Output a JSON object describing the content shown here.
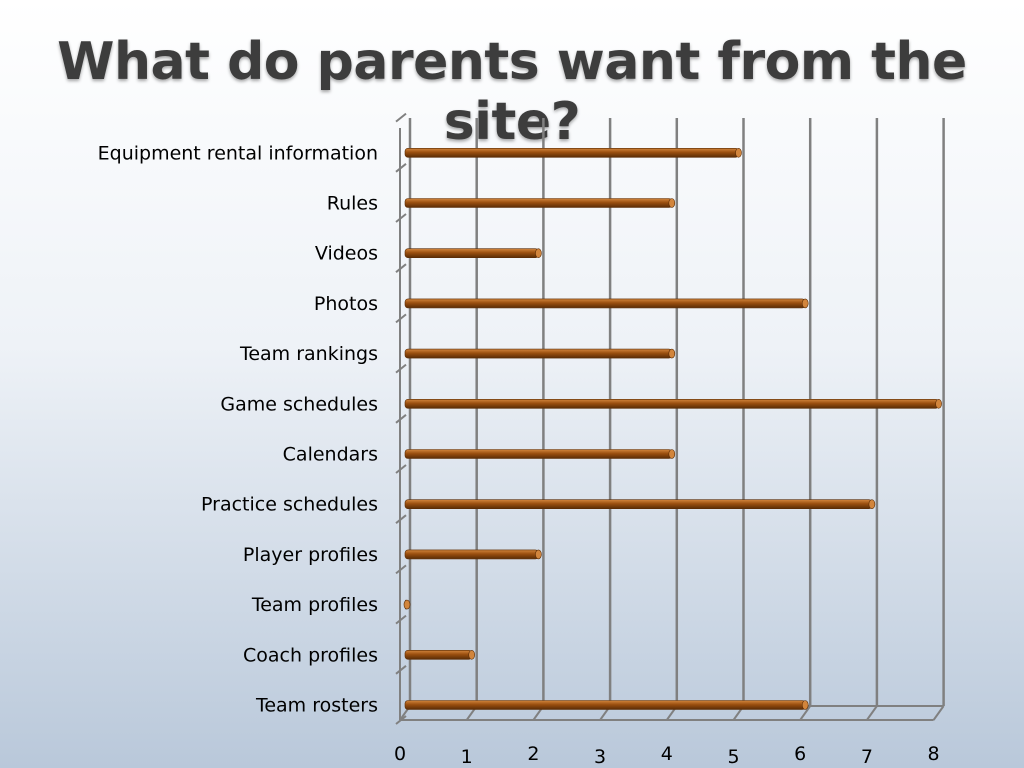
{
  "slide": {
    "title": "What do parents want from the site?"
  },
  "colors": {
    "bar": "#9a4f0f",
    "bar_light": "#d2853c",
    "bar_dark": "#5a2c06",
    "grid": "#808080",
    "text": "#000000"
  },
  "chart_data": {
    "type": "bar",
    "orientation": "horizontal",
    "categories": [
      "Team rosters",
      "Coach profiles",
      "Team profiles",
      "Player profiles",
      "Practice schedules",
      "Calendars",
      "Game schedules",
      "Team rankings",
      "Photos",
      "Videos",
      "Rules",
      "Equipment rental information"
    ],
    "values": [
      6,
      1,
      0,
      2,
      7,
      4,
      8,
      4,
      6,
      2,
      4,
      5
    ],
    "xlim": [
      0,
      8
    ],
    "xticks": [
      "0",
      "1",
      "2",
      "3",
      "4",
      "5",
      "6",
      "7",
      "8"
    ],
    "grid": "vertical",
    "legend": "none"
  }
}
